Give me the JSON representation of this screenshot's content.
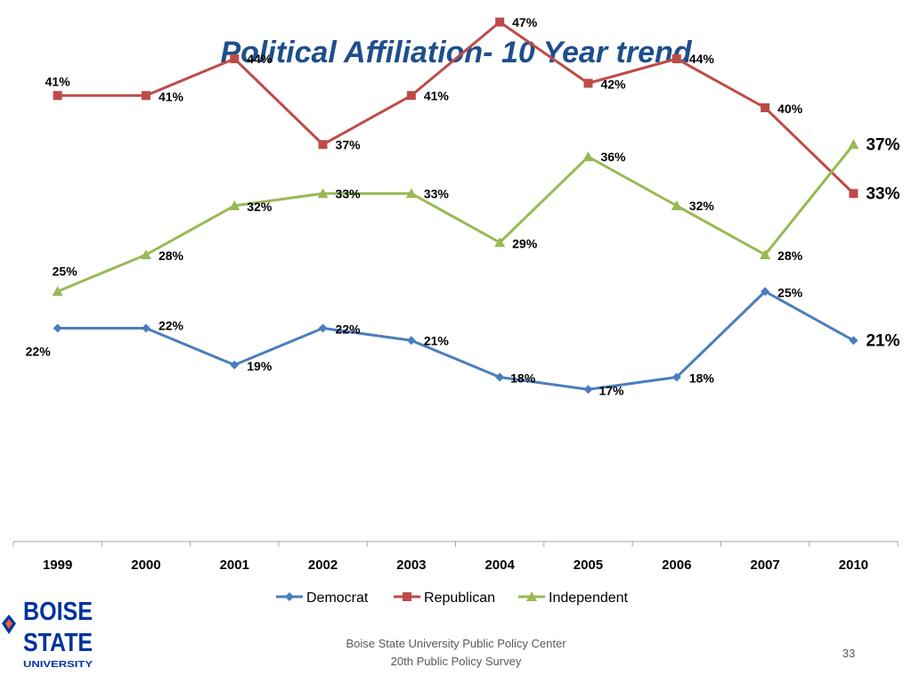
{
  "title": "Political Affiliation- 10 Year trend",
  "footer": {
    "line1": "Boise State University  Public Policy Center",
    "line2": "20th Public Policy Survey",
    "page_number": "33"
  },
  "logo": {
    "line1": "BOISE",
    "line2": "STATE",
    "line3": "UNIVERSITY"
  },
  "colors": {
    "title": "#1f4e8c",
    "democrat": "#4a7ebb",
    "republican": "#be4b48",
    "independent": "#98b954"
  },
  "chart_data": {
    "type": "line",
    "title": "",
    "xlabel": "",
    "ylabel": "",
    "ylim": [
      0,
      55
    ],
    "grid": false,
    "legend_position": "bottom",
    "categories": [
      "1999",
      "2000",
      "2001",
      "2002",
      "2003",
      "2004",
      "2005",
      "2006",
      "2007",
      "2010"
    ],
    "series": [
      {
        "name": "Democrat",
        "marker": "diamond",
        "color": "#4a7ebb",
        "values": [
          22,
          22,
          19,
          22,
          21,
          18,
          17,
          18,
          25,
          21
        ],
        "labels": [
          "22%",
          "22%",
          "19%",
          "22%",
          "21%",
          "18%",
          "17%",
          "18%",
          "25%",
          "21%"
        ]
      },
      {
        "name": "Republican",
        "marker": "square",
        "color": "#be4b48",
        "values": [
          41,
          41,
          44,
          37,
          41,
          47,
          42,
          44,
          40,
          33
        ],
        "labels": [
          "41%",
          "41%",
          "44%",
          "37%",
          "41%",
          "47%",
          "42%",
          "44%",
          "40%",
          "33%"
        ]
      },
      {
        "name": "Independent",
        "marker": "triangle",
        "color": "#98b954",
        "values": [
          25,
          28,
          32,
          33,
          33,
          29,
          36,
          32,
          28,
          37
        ],
        "labels": [
          "25%",
          "28%",
          "32%",
          "33%",
          "33%",
          "29%",
          "36%",
          "32%",
          "28%",
          "37%"
        ]
      }
    ]
  }
}
